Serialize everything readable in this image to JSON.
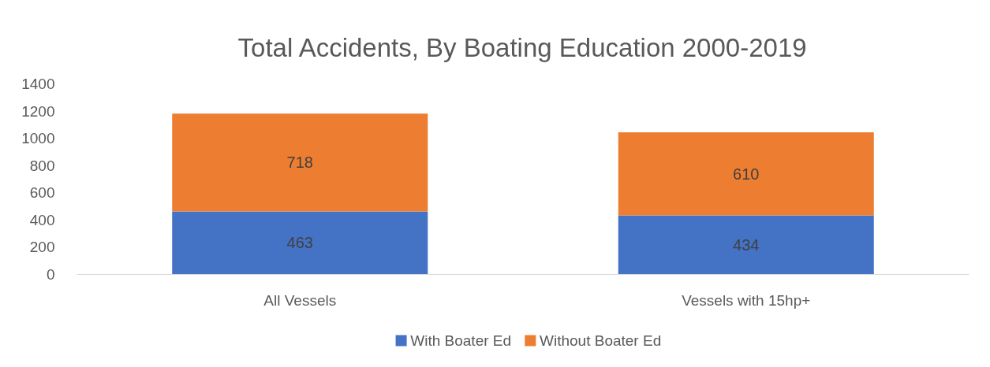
{
  "chart_data": {
    "type": "bar",
    "title": "Total Accidents, By Boating Education 2000-2019",
    "categories": [
      "All Vessels",
      "Vessels with 15hp+"
    ],
    "series": [
      {
        "name": "With Boater Ed",
        "color": "#4472c4",
        "values": [
          463,
          434
        ]
      },
      {
        "name": "Without Boater Ed",
        "color": "#ed7d31",
        "values": [
          718,
          610
        ]
      }
    ],
    "stacked": true,
    "ylim": [
      0,
      1400
    ],
    "yticks": [
      0,
      200,
      400,
      600,
      800,
      1000,
      1200,
      1400
    ],
    "data_labels": true,
    "legend": "bottom"
  }
}
